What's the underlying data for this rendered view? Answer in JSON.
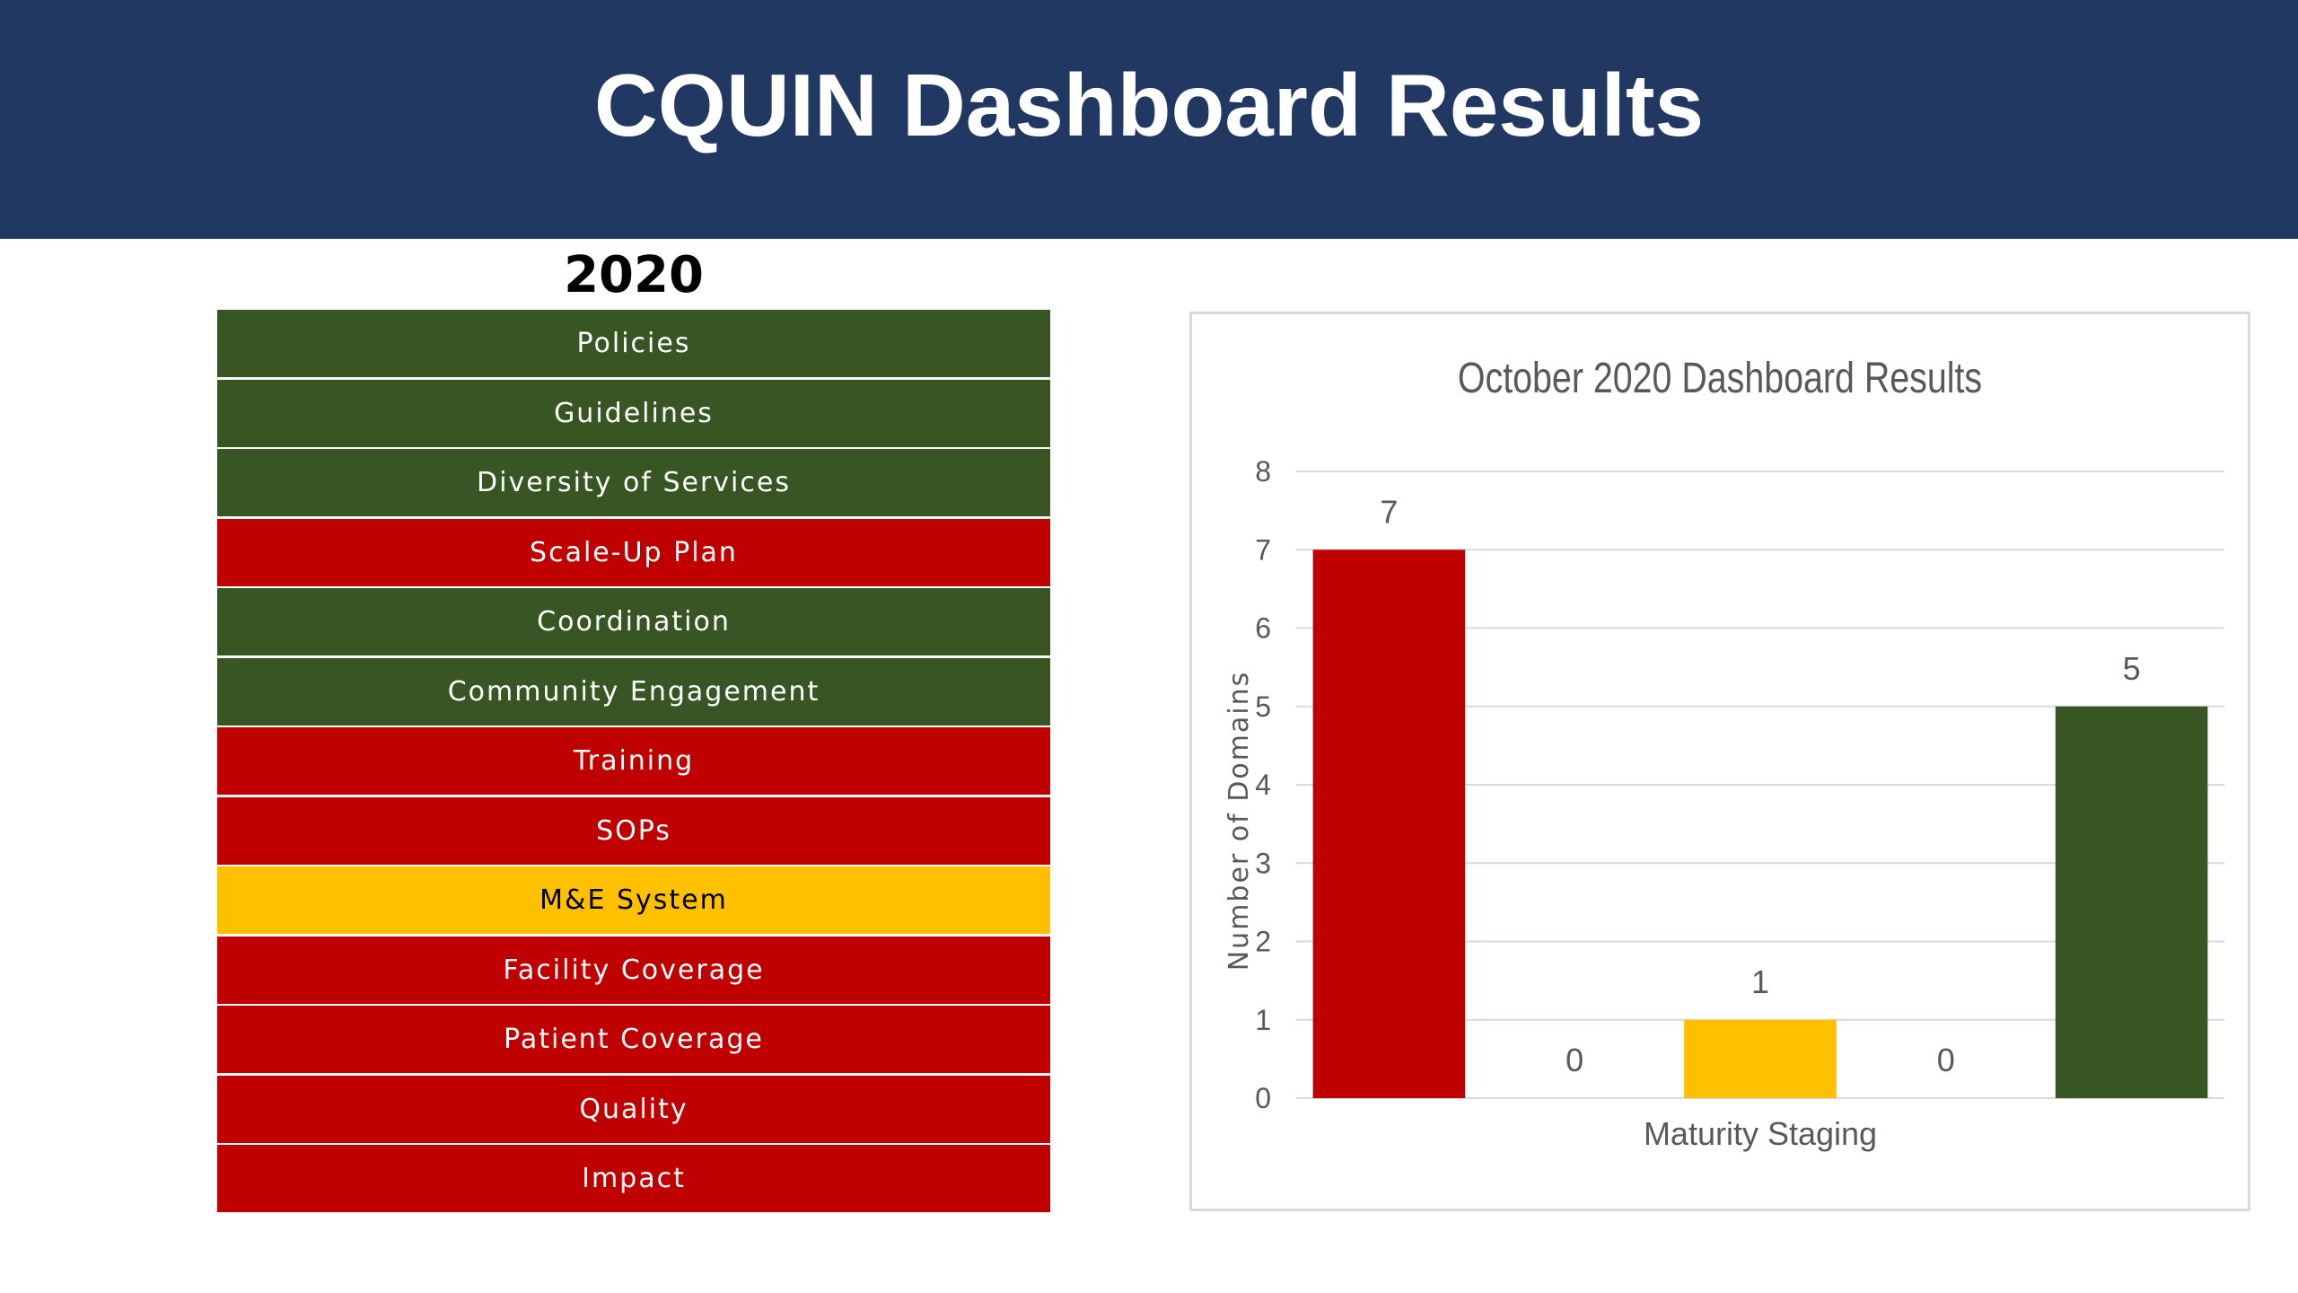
{
  "header": {
    "title": "CQUIN Dashboard Results"
  },
  "domains": {
    "year": "2020",
    "items": [
      {
        "label": "Policies",
        "status": "green"
      },
      {
        "label": "Guidelines",
        "status": "green"
      },
      {
        "label": "Diversity of Services",
        "status": "green"
      },
      {
        "label": "Scale-Up Plan",
        "status": "red"
      },
      {
        "label": "Coordination",
        "status": "green"
      },
      {
        "label": "Community Engagement",
        "status": "green"
      },
      {
        "label": "Training",
        "status": "red"
      },
      {
        "label": "SOPs",
        "status": "red"
      },
      {
        "label": "M&E System",
        "status": "yellow"
      },
      {
        "label": "Facility Coverage",
        "status": "red"
      },
      {
        "label": "Patient Coverage",
        "status": "red"
      },
      {
        "label": "Quality",
        "status": "red"
      },
      {
        "label": "Impact",
        "status": "red"
      }
    ]
  },
  "colors": {
    "green": "#375623",
    "red": "#c00000",
    "yellow": "#ffc000",
    "banner": "#213863"
  },
  "chart_data": {
    "type": "bar",
    "title": "October 2020 Dashboard Results",
    "xlabel": "Maturity Staging",
    "ylabel": "Number of Domains",
    "ylim": [
      0,
      8
    ],
    "yticks": [
      0,
      1,
      2,
      3,
      4,
      5,
      6,
      7,
      8
    ],
    "grid": true,
    "values": [
      7,
      0,
      1,
      0,
      5
    ],
    "bar_colors": [
      "#c00000",
      "#ed7d31",
      "#ffc000",
      "#92d050",
      "#375623"
    ],
    "data_labels": [
      "7",
      "0",
      "1",
      "0",
      "5"
    ]
  }
}
